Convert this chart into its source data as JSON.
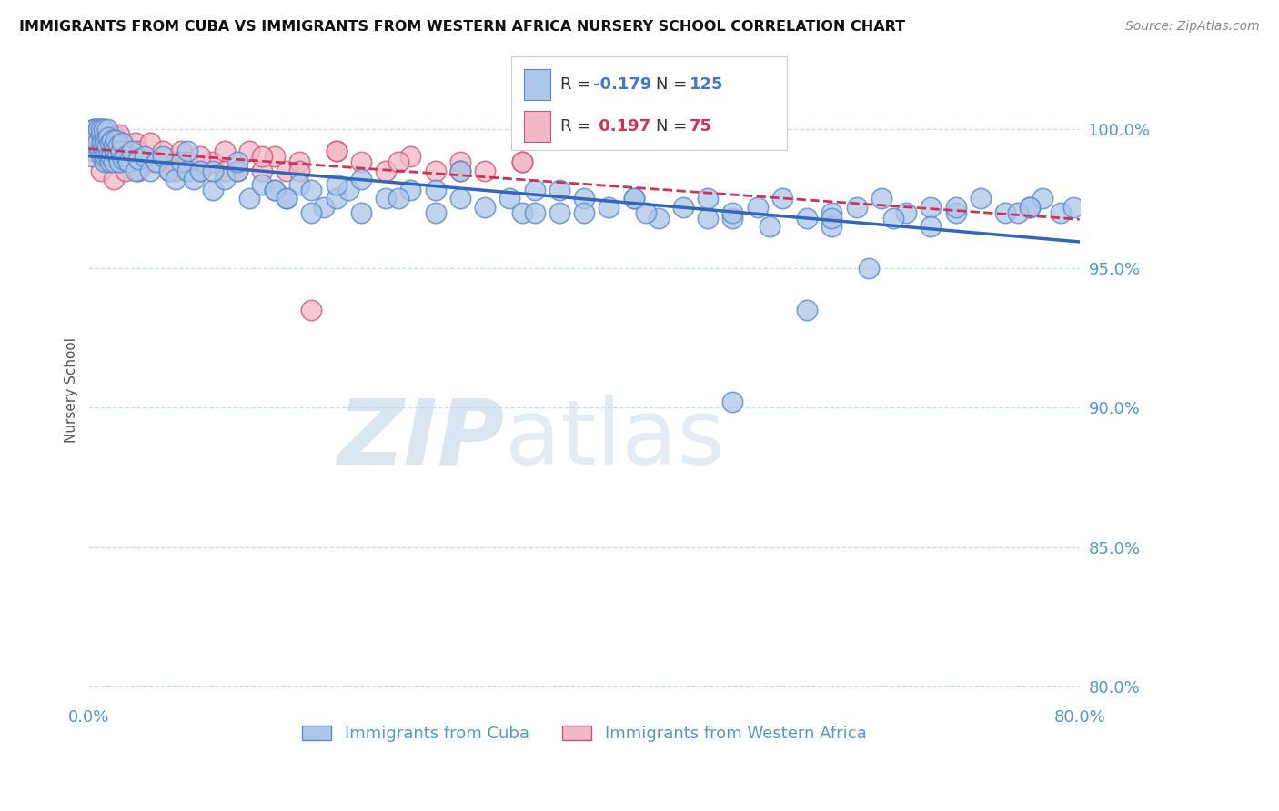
{
  "title": "IMMIGRANTS FROM CUBA VS IMMIGRANTS FROM WESTERN AFRICA NURSERY SCHOOL CORRELATION CHART",
  "source": "Source: ZipAtlas.com",
  "ylabel": "Nursery School",
  "y_ticks": [
    80.0,
    85.0,
    90.0,
    95.0,
    100.0
  ],
  "x_min": 0.0,
  "x_max": 80.0,
  "y_min": 79.5,
  "y_max": 101.8,
  "cuba_R": -0.179,
  "cuba_N": 125,
  "africa_R": 0.197,
  "africa_N": 75,
  "cuba_color": "#aec6e8",
  "cuba_edge": "#5588cc",
  "africa_color": "#f2b8c6",
  "africa_edge": "#cc5577",
  "trend_cuba_color": "#3366bb",
  "trend_africa_color": "#cc3355",
  "watermark_zip": "ZIP",
  "watermark_atlas": "atlas",
  "watermark_color_zip": "#c5d8ec",
  "watermark_color_atlas": "#c5d8ec",
  "legend_label_cuba": "Immigrants from Cuba",
  "legend_label_africa": "Immigrants from Western Africa",
  "cuba_x": [
    0.2,
    0.3,
    0.4,
    0.5,
    0.5,
    0.6,
    0.7,
    0.8,
    0.9,
    1.0,
    1.0,
    1.1,
    1.1,
    1.2,
    1.2,
    1.3,
    1.3,
    1.4,
    1.4,
    1.5,
    1.5,
    1.6,
    1.6,
    1.7,
    1.7,
    1.8,
    1.9,
    2.0,
    2.0,
    2.1,
    2.2,
    2.3,
    2.4,
    2.5,
    2.6,
    2.7,
    2.8,
    3.0,
    3.2,
    3.5,
    3.8,
    4.0,
    4.5,
    5.0,
    5.5,
    6.0,
    6.5,
    7.0,
    7.5,
    8.0,
    8.5,
    9.0,
    10.0,
    11.0,
    12.0,
    13.0,
    14.0,
    15.0,
    16.0,
    17.0,
    18.0,
    19.0,
    20.0,
    21.0,
    22.0,
    24.0,
    26.0,
    28.0,
    30.0,
    32.0,
    34.0,
    36.0,
    38.0,
    40.0,
    42.0,
    44.0,
    46.0,
    48.0,
    50.0,
    52.0,
    54.0,
    56.0,
    58.0,
    60.0,
    62.0,
    64.0,
    66.0,
    68.0,
    70.0,
    72.0,
    74.0,
    76.0,
    77.0,
    78.5,
    79.5,
    30.0,
    15.0,
    25.0,
    35.0,
    45.0,
    55.0,
    65.0,
    75.0,
    10.0,
    20.0,
    40.0,
    50.0,
    60.0,
    70.0,
    8.0,
    12.0,
    16.0,
    18.0,
    22.0,
    28.0,
    36.0,
    44.0,
    52.0,
    60.0,
    68.0,
    76.0,
    38.0,
    52.0,
    58.0,
    63.0
  ],
  "cuba_y": [
    99.5,
    99.0,
    100.0,
    99.5,
    100.0,
    99.8,
    99.5,
    100.0,
    99.2,
    99.8,
    100.0,
    99.5,
    99.0,
    100.0,
    99.3,
    99.6,
    98.8,
    99.5,
    99.0,
    100.0,
    99.4,
    99.7,
    99.0,
    99.5,
    98.8,
    99.0,
    99.6,
    99.4,
    98.8,
    99.2,
    99.6,
    99.0,
    99.4,
    98.8,
    99.2,
    99.5,
    98.9,
    99.0,
    98.8,
    99.2,
    98.5,
    98.9,
    99.0,
    98.5,
    98.8,
    99.0,
    98.5,
    98.2,
    98.8,
    98.5,
    98.2,
    98.5,
    97.8,
    98.2,
    98.5,
    97.5,
    98.0,
    97.8,
    97.5,
    98.0,
    97.8,
    97.2,
    97.5,
    97.8,
    97.0,
    97.5,
    97.8,
    97.0,
    97.5,
    97.2,
    97.5,
    97.8,
    97.0,
    97.5,
    97.2,
    97.5,
    96.8,
    97.2,
    97.5,
    96.8,
    97.2,
    97.5,
    96.8,
    97.0,
    97.2,
    97.5,
    97.0,
    97.2,
    97.0,
    97.5,
    97.0,
    97.2,
    97.5,
    97.0,
    97.2,
    98.5,
    97.8,
    97.5,
    97.0,
    97.0,
    96.5,
    96.8,
    97.0,
    98.5,
    98.0,
    97.0,
    96.8,
    96.5,
    97.2,
    99.2,
    98.8,
    97.5,
    97.0,
    98.2,
    97.8,
    97.0,
    97.5,
    97.0,
    96.8,
    96.5,
    97.2,
    97.8,
    90.2,
    93.5,
    95.0
  ],
  "africa_x": [
    0.2,
    0.3,
    0.4,
    0.5,
    0.5,
    0.6,
    0.7,
    0.8,
    0.9,
    1.0,
    1.0,
    1.1,
    1.2,
    1.3,
    1.4,
    1.5,
    1.5,
    1.6,
    1.7,
    1.8,
    1.9,
    2.0,
    2.1,
    2.2,
    2.3,
    2.4,
    2.5,
    2.6,
    2.8,
    3.0,
    3.2,
    3.5,
    3.8,
    4.0,
    4.5,
    5.0,
    5.5,
    6.0,
    6.5,
    7.0,
    7.5,
    8.0,
    9.0,
    10.0,
    11.0,
    12.0,
    13.0,
    14.0,
    15.0,
    16.0,
    17.0,
    18.0,
    20.0,
    22.0,
    24.0,
    26.0,
    28.0,
    30.0,
    32.0,
    35.0,
    1.0,
    1.5,
    2.0,
    3.0,
    5.0,
    7.0,
    9.0,
    11.0,
    14.0,
    17.0,
    20.0,
    25.0,
    30.0,
    35.0,
    4.0
  ],
  "africa_y": [
    99.5,
    99.8,
    99.2,
    99.5,
    100.0,
    99.8,
    99.5,
    100.0,
    99.2,
    99.8,
    99.5,
    100.0,
    99.5,
    99.8,
    99.2,
    99.5,
    98.8,
    99.5,
    99.8,
    99.2,
    99.5,
    99.8,
    99.2,
    99.5,
    98.8,
    99.5,
    99.8,
    99.2,
    99.5,
    98.8,
    99.2,
    98.8,
    99.5,
    99.2,
    98.8,
    99.5,
    98.8,
    99.2,
    98.5,
    98.8,
    99.2,
    98.8,
    98.5,
    98.8,
    99.2,
    98.5,
    99.2,
    98.5,
    99.0,
    98.5,
    98.8,
    93.5,
    99.2,
    98.8,
    98.5,
    99.0,
    98.5,
    98.8,
    98.5,
    98.8,
    98.5,
    98.8,
    98.2,
    98.5,
    98.8,
    98.5,
    99.0,
    98.5,
    99.0,
    98.5,
    99.2,
    98.8,
    98.5,
    98.8,
    98.5
  ]
}
